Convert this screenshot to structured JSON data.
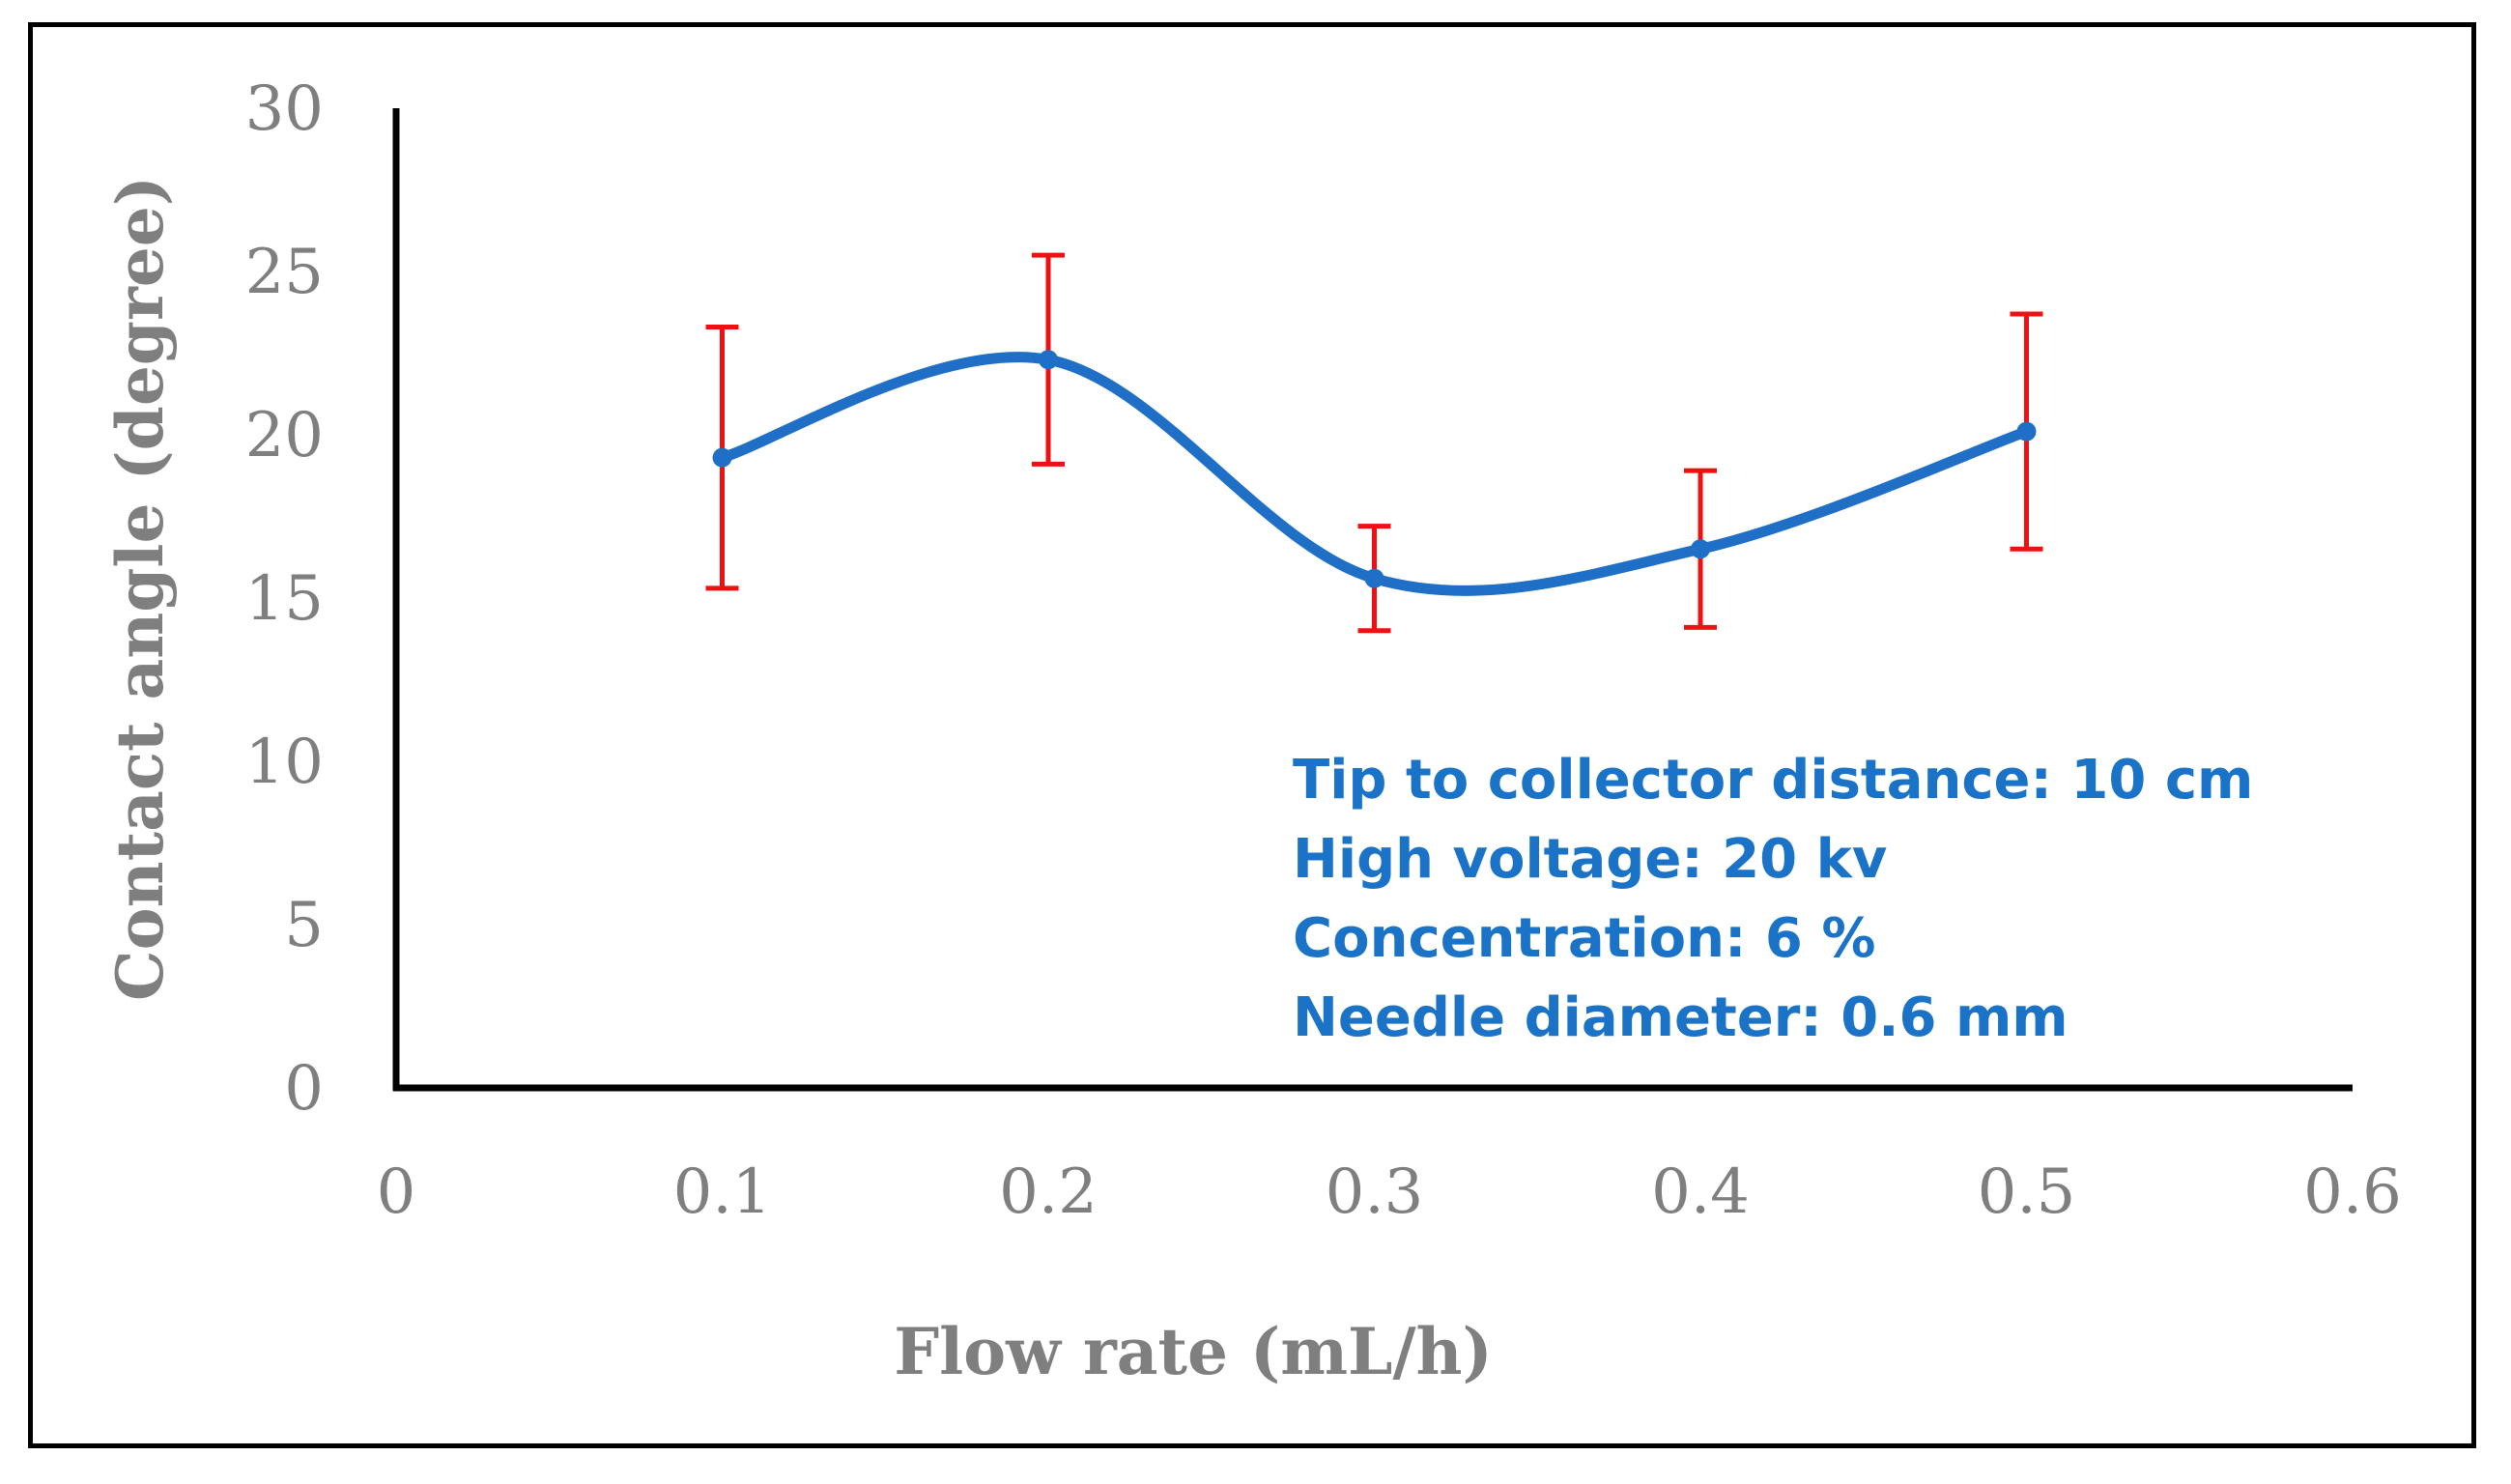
{
  "chart_data": {
    "type": "line",
    "title": "",
    "xlabel": "Flow rate (mL/h)",
    "ylabel": "Contact angle (degree)",
    "xlim": [
      0,
      0.6
    ],
    "ylim": [
      0,
      30
    ],
    "x_ticks": [
      "0",
      "0.1",
      "0.2",
      "0.3",
      "0.4",
      "0.5",
      "0.6"
    ],
    "y_ticks": [
      "0",
      "5",
      "10",
      "15",
      "20",
      "25",
      "30"
    ],
    "grid": false,
    "smooth": true,
    "series": [
      {
        "name": "Contact angle",
        "color": "#1f6fc6",
        "x": [
          0.1,
          0.2,
          0.3,
          0.4,
          0.5
        ],
        "values": [
          19.3,
          22.3,
          15.6,
          16.5,
          20.1
        ],
        "error": [
          4.0,
          3.2,
          1.6,
          2.4,
          3.6
        ],
        "error_color": "#ee1111"
      }
    ],
    "annotations": [
      "Tip to collector distance: 10 cm",
      "High voltage: 20 kv",
      "Concentration: 6 %",
      "Needle diameter: 0.6 mm"
    ]
  }
}
